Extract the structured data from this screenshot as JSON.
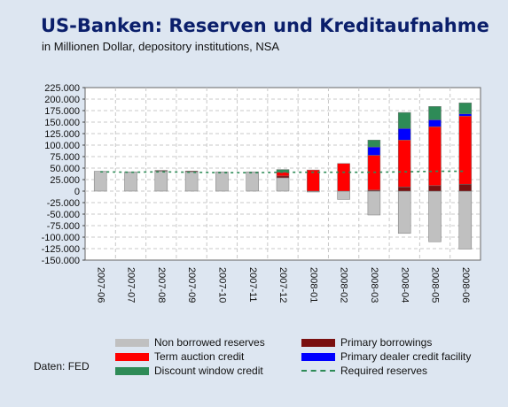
{
  "header": {
    "title": "US-Banken: Reserven und Kreditaufnahme",
    "subtitle": "in Millionen Dollar, depository institutions, NSA"
  },
  "footer": {
    "source": "Daten: FED"
  },
  "legend": [
    {
      "label": "Non borrowed reserves",
      "color": "#c0c0c0",
      "style": "box"
    },
    {
      "label": "Primary borrowings",
      "color": "#7a1010",
      "style": "box"
    },
    {
      "label": "Term auction credit",
      "color": "#ff0000",
      "style": "box"
    },
    {
      "label": "Primary dealer credit facility",
      "color": "#0000ff",
      "style": "box"
    },
    {
      "label": "Discount window credit",
      "color": "#2e8b57",
      "style": "box"
    },
    {
      "label": "Required reserves",
      "color": "#2e8b57",
      "style": "dashed"
    }
  ],
  "chart_data": {
    "type": "bar",
    "stacked": true,
    "categories": [
      "2007-06",
      "2007-07",
      "2007-08",
      "2007-09",
      "2007-10",
      "2007-11",
      "2007-12",
      "2008-01",
      "2008-02",
      "2008-03",
      "2008-04",
      "2008-05",
      "2008-06"
    ],
    "ylim": [
      -150000,
      225000
    ],
    "yticks": [
      225000,
      200000,
      175000,
      150000,
      125000,
      100000,
      75000,
      50000,
      25000,
      0,
      -25000,
      -50000,
      -75000,
      -100000,
      -125000,
      -150000
    ],
    "ytick_labels": [
      "225.000",
      "200.000",
      "175.000",
      "150.000",
      "125.000",
      "100.000",
      "75.000",
      "50.000",
      "25.000",
      "0",
      "-25.000",
      "-50.000",
      "-75.000",
      "-100.000",
      "-125.000",
      "-150.000"
    ],
    "grid": true,
    "series": [
      {
        "name": "Non borrowed reserves",
        "color": "#c0c0c0",
        "values": [
          43000,
          42000,
          44000,
          42000,
          42000,
          42000,
          29000,
          -2000,
          -18000,
          -52000,
          -92000,
          -110000,
          -126000
        ]
      },
      {
        "name": "Primary borrowings",
        "color": "#7a1010",
        "values": [
          0,
          0,
          1000,
          1500,
          0,
          0,
          4000,
          0,
          0,
          2000,
          9000,
          12000,
          15000
        ]
      },
      {
        "name": "Term auction credit",
        "color": "#ff0000",
        "values": [
          0,
          0,
          0,
          0,
          0,
          0,
          8000,
          46000,
          60000,
          76000,
          102000,
          128000,
          148000
        ]
      },
      {
        "name": "Primary dealer credit facility",
        "color": "#0000ff",
        "values": [
          0,
          0,
          0,
          0,
          0,
          0,
          0,
          0,
          0,
          18000,
          25000,
          15000,
          5000
        ]
      },
      {
        "name": "Discount window credit",
        "color": "#2e8b57",
        "values": [
          0,
          0,
          0,
          0,
          0,
          0,
          6000,
          0,
          0,
          15000,
          35000,
          29000,
          24000
        ]
      }
    ],
    "reference_line": {
      "name": "Required reserves",
      "color": "#2e8b57",
      "values": [
        42000,
        41000,
        42000,
        41000,
        40000,
        40000,
        41000,
        41000,
        41000,
        41000,
        42000,
        43000,
        43000
      ]
    }
  }
}
